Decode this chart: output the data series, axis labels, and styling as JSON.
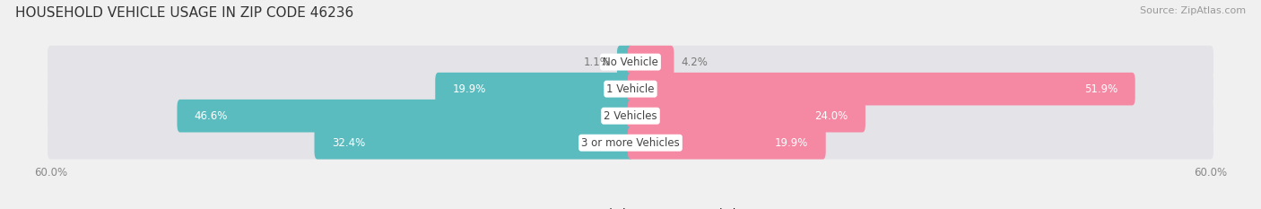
{
  "title": "HOUSEHOLD VEHICLE USAGE IN ZIP CODE 46236",
  "source": "Source: ZipAtlas.com",
  "categories": [
    "No Vehicle",
    "1 Vehicle",
    "2 Vehicles",
    "3 or more Vehicles"
  ],
  "owner_values": [
    1.1,
    19.9,
    46.6,
    32.4
  ],
  "renter_values": [
    4.2,
    51.9,
    24.0,
    19.9
  ],
  "owner_color": "#5bbcbf",
  "renter_color": "#f589a3",
  "background_color": "#f0f0f0",
  "bar_bg_color": "#e4e4e8",
  "xlim": 60.0,
  "bar_height": 0.62,
  "row_gap_color": "#ffffff",
  "label_color_dark": "#777777",
  "label_color_white": "#ffffff",
  "title_fontsize": 11,
  "source_fontsize": 8,
  "tick_fontsize": 8.5,
  "label_fontsize": 8.5,
  "category_fontsize": 8.5,
  "owner_label_inside_threshold": 15,
  "renter_label_inside_threshold": 15
}
